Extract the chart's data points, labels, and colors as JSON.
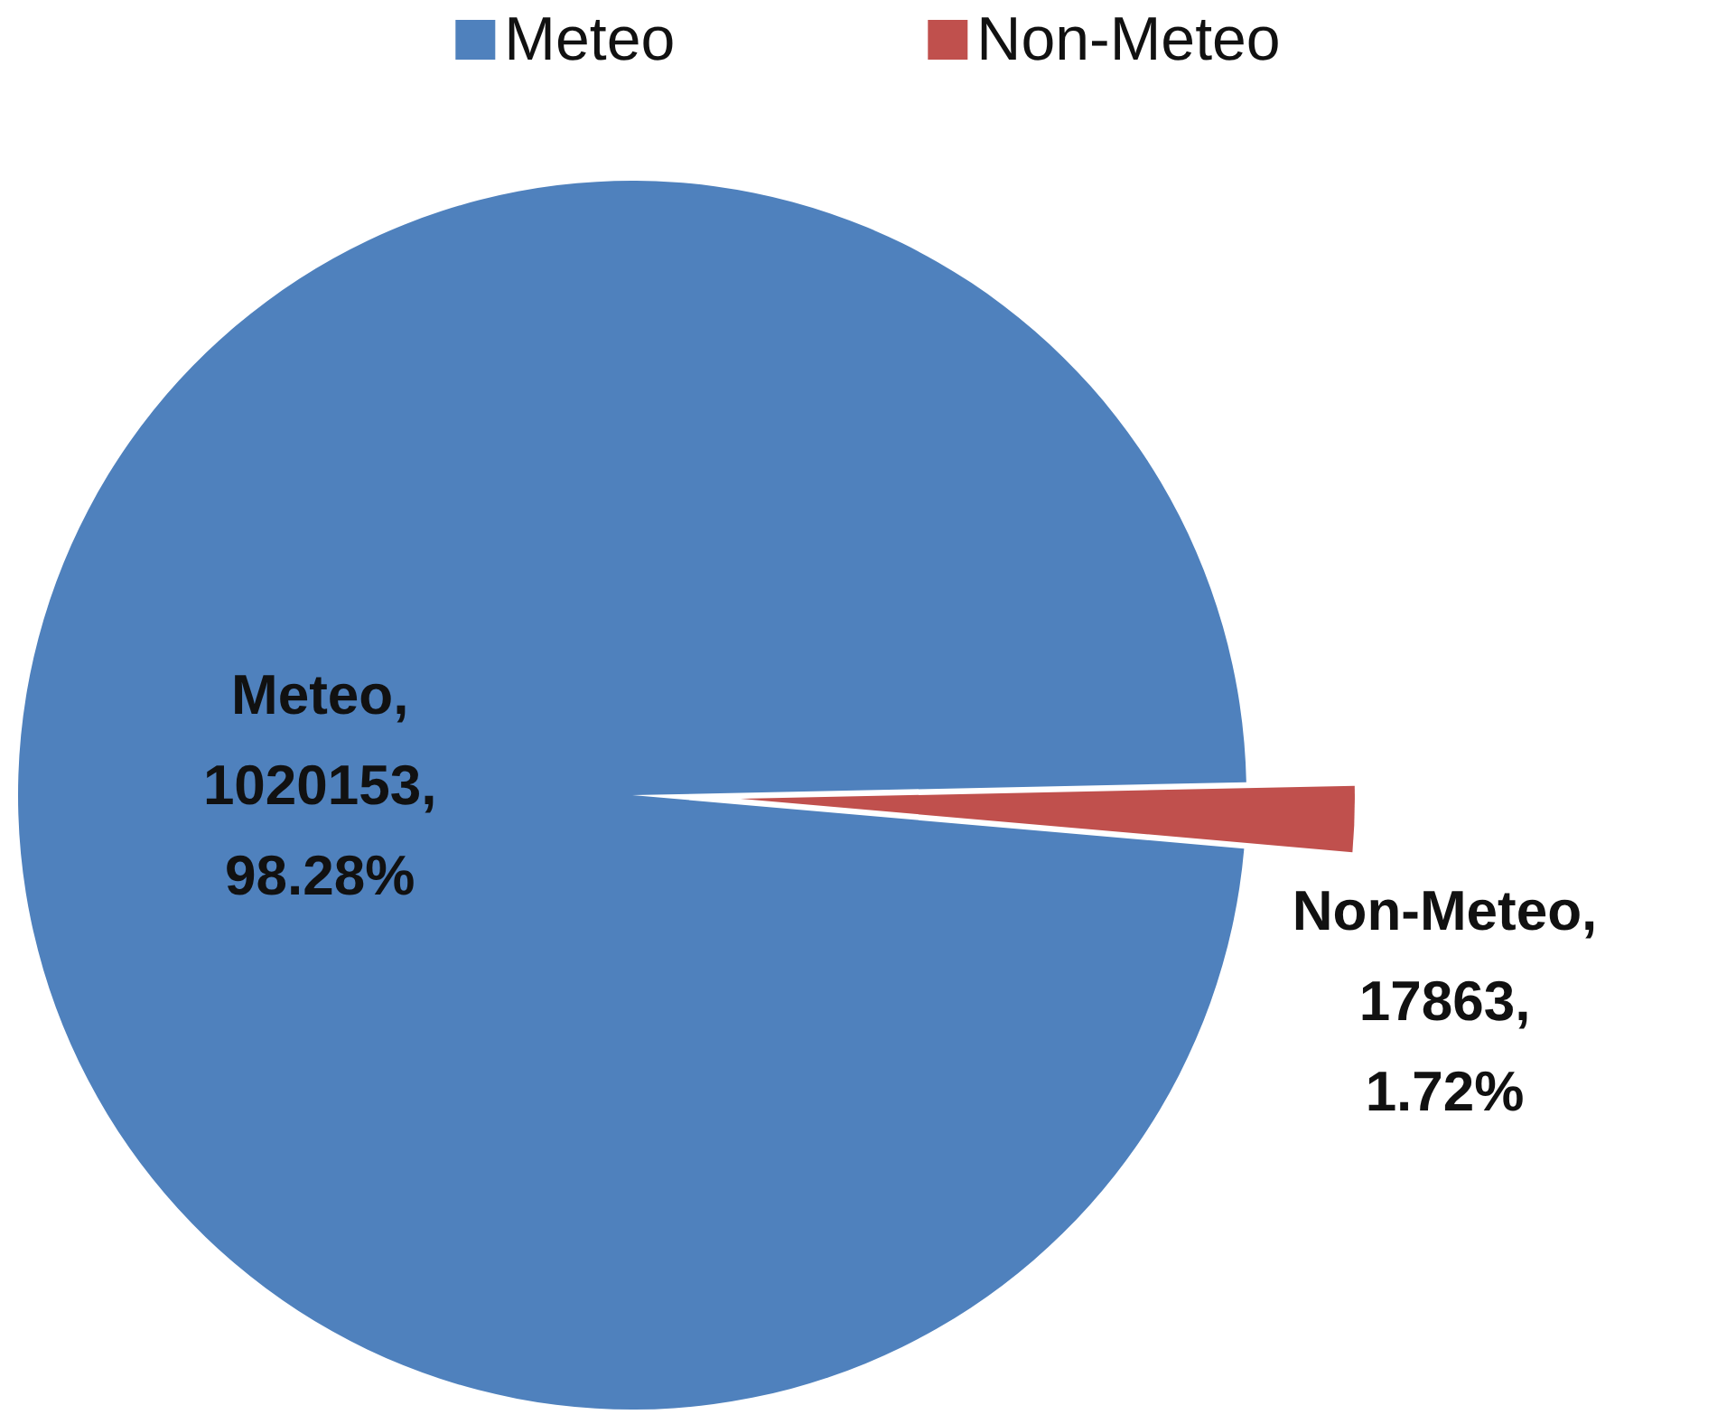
{
  "chart_data": {
    "type": "pie",
    "categories": [
      "Meteo",
      "Non-Meteo"
    ],
    "values": [
      1020153,
      17863
    ],
    "colors": [
      "#4f81bd",
      "#c0504d"
    ],
    "value_labels": [
      "Meteo, 1020153, 98.28%",
      "Non-Meteo, 17863, 1.72%"
    ],
    "legend": "top"
  }
}
